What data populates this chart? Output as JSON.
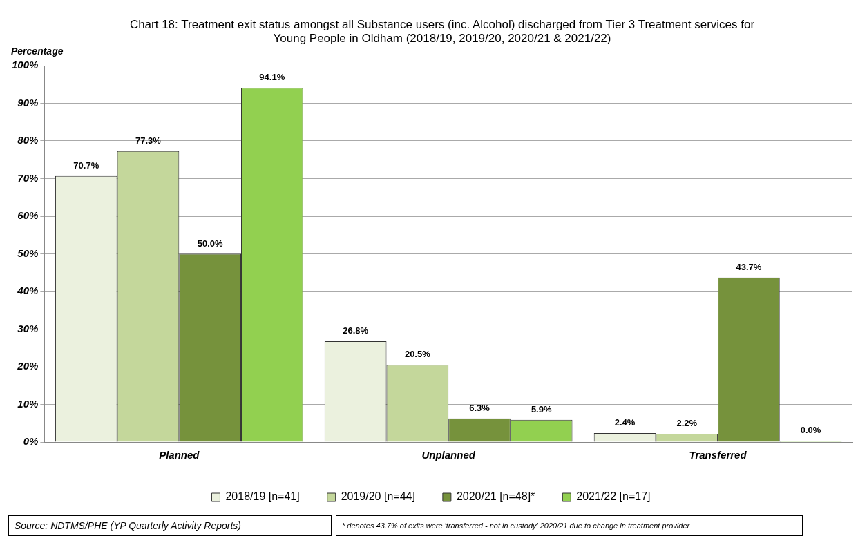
{
  "chart_data": {
    "type": "bar",
    "title": "Chart 18: Treatment exit status amongst all Substance users (inc. Alcohol) discharged from Tier 3 Treatment services for Young People in Oldham (2018/19, 2019/20, 2020/21 & 2021/22)",
    "ylabel": "Percentage",
    "categories": [
      "Planned",
      "Unplanned",
      "Transferred"
    ],
    "series": [
      {
        "name": "2018/19 [n=41]",
        "color": "#ebf1de",
        "values": [
          70.7,
          26.8,
          2.4
        ],
        "value_labels": [
          "70.7%",
          "26.8%",
          "2.4%"
        ]
      },
      {
        "name": "2019/20 [n=44]",
        "color": "#c4d79b",
        "values": [
          77.3,
          20.5,
          2.2
        ],
        "value_labels": [
          "77.3%",
          "20.5%",
          "2.2%"
        ]
      },
      {
        "name": "2020/21 [n=48]*",
        "color": "#76923c",
        "values": [
          50.0,
          6.3,
          43.7
        ],
        "value_labels": [
          "50.0%",
          "6.3%",
          "43.7%"
        ]
      },
      {
        "name": "2021/22 [n=17]",
        "color": "#92d050",
        "values": [
          94.1,
          5.9,
          0.0
        ],
        "value_labels": [
          "94.1%",
          "5.9%",
          "0.0%"
        ]
      }
    ],
    "ylim": [
      0,
      100
    ],
    "yticks": [
      {
        "value": 0,
        "label": "0%"
      },
      {
        "value": 10,
        "label": "10%"
      },
      {
        "value": 20,
        "label": "20%"
      },
      {
        "value": 30,
        "label": "30%"
      },
      {
        "value": 40,
        "label": "40%"
      },
      {
        "value": 50,
        "label": "50%"
      },
      {
        "value": 60,
        "label": "60%"
      },
      {
        "value": 70,
        "label": "70%"
      },
      {
        "value": 80,
        "label": "80%"
      },
      {
        "value": 90,
        "label": "90%"
      },
      {
        "value": 100,
        "label": "100%"
      }
    ],
    "grid": "y",
    "legend": "bottom",
    "annotations": [
      "Source: NDTMS/PHE  (YP Quarterly Activity Reports)",
      "* denotes 43.7% of exits were 'transferred - not in custody' 2020/21 due to change in treatment provider"
    ]
  }
}
